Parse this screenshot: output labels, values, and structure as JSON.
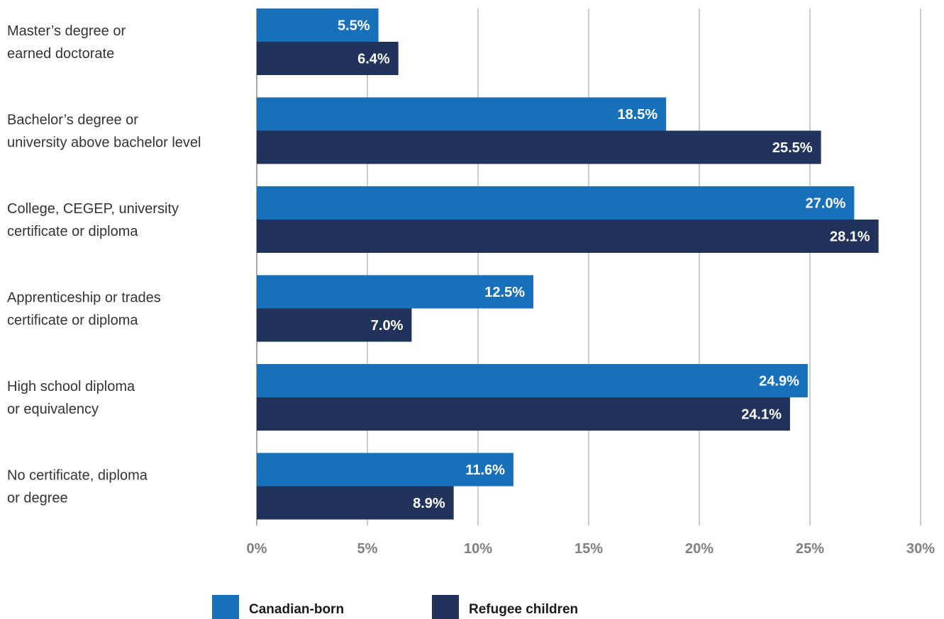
{
  "chart_data": {
    "type": "bar",
    "orientation": "horizontal",
    "categories": [
      [
        "Master’s degree or",
        "earned doctorate"
      ],
      [
        "Bachelor’s degree or",
        "university above bachelor level"
      ],
      [
        "College, CEGEP, university",
        "certificate or diploma"
      ],
      [
        "Apprenticeship or trades",
        "certificate or diploma"
      ],
      [
        "High school diploma",
        "or equivalency"
      ],
      [
        "No certificate, diploma",
        "or degree"
      ]
    ],
    "series": [
      {
        "name": "Canadian-born",
        "color": "#1770b9",
        "values": [
          5.5,
          18.5,
          27.0,
          12.5,
          24.9,
          11.6
        ],
        "labels": [
          "5.5%",
          "18.5%",
          "27.0%",
          "12.5%",
          "24.9%",
          "11.6%"
        ]
      },
      {
        "name": "Refugee children",
        "color": "#22335b",
        "values": [
          6.4,
          25.5,
          28.1,
          7.0,
          24.1,
          8.9
        ],
        "labels": [
          "6.4%",
          "25.5%",
          "28.1%",
          "7.0%",
          "24.1%",
          "8.9%"
        ]
      }
    ],
    "xlim": [
      0,
      30
    ],
    "xticks": [
      0,
      5,
      10,
      15,
      20,
      25,
      30
    ],
    "xtick_labels": [
      "0%",
      "5%",
      "10%",
      "15%",
      "20%",
      "25%",
      "30%"
    ],
    "grid": "vertical",
    "legend_position": "bottom"
  }
}
